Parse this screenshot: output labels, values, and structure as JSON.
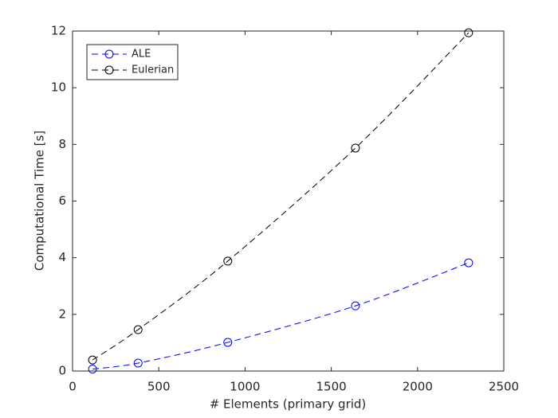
{
  "chart_data": {
    "type": "line",
    "x_label": "# Elements (primary grid)",
    "y_label": "Computational Time [s]",
    "x": [
      116,
      380,
      900,
      1640,
      2296
    ],
    "series": [
      {
        "name": "ALE",
        "color": "#0000ff",
        "values": [
          0.07,
          0.28,
          1.01,
          2.3,
          3.82
        ]
      },
      {
        "name": "Eulerian",
        "color": "#000000",
        "values": [
          0.39,
          1.46,
          3.88,
          7.87,
          11.94
        ]
      }
    ],
    "xlim": [
      0,
      2500
    ],
    "xticks": [
      0,
      500,
      1000,
      1500,
      2000,
      2500
    ],
    "ylim": [
      0,
      12
    ],
    "yticks": [
      0,
      2,
      4,
      6,
      8,
      10,
      12
    ],
    "grid": false,
    "legend": "top-left"
  }
}
